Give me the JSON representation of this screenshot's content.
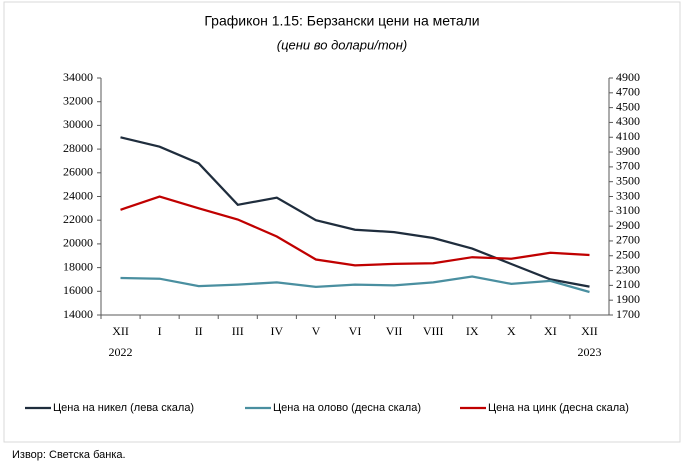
{
  "chart_data": {
    "type": "line",
    "title": "Графикон 1.15: Берзански цени на метали",
    "subtitle": "(цени во долари/тон)",
    "categories": [
      "XII",
      "I",
      "II",
      "III",
      "IV",
      "V",
      "VI",
      "VII",
      "VIII",
      "IX",
      "X",
      "XI",
      "XII"
    ],
    "year_labels": [
      "2022",
      null,
      null,
      null,
      null,
      null,
      null,
      null,
      null,
      null,
      null,
      null,
      "2023"
    ],
    "series": [
      {
        "name": "Цена на никел (лева скала)",
        "color": "#1f2d3d",
        "axis": "y",
        "values": [
          29000,
          28200,
          26800,
          23300,
          23900,
          22000,
          21200,
          21000,
          20500,
          19600,
          18300,
          17000,
          16400
        ]
      },
      {
        "name": "Цена на олово (десна скала)",
        "color": "#4a8fa0",
        "axis": "y2",
        "values": [
          2200,
          2190,
          2090,
          2110,
          2140,
          2080,
          2110,
          2100,
          2140,
          2220,
          2120,
          2160,
          2010
        ]
      },
      {
        "name": "Цена на цинк (десна скала)",
        "color": "#c00000",
        "axis": "y2",
        "values": [
          3120,
          3300,
          3140,
          2990,
          2760,
          2450,
          2370,
          2390,
          2400,
          2480,
          2460,
          2540,
          2510
        ]
      }
    ],
    "ylim": [
      14000,
      34000
    ],
    "yticks": [
      14000,
      16000,
      18000,
      20000,
      22000,
      24000,
      26000,
      28000,
      30000,
      32000,
      34000
    ],
    "y2lim": [
      1700,
      4900
    ],
    "y2ticks": [
      1700,
      1900,
      2100,
      2300,
      2500,
      2700,
      2900,
      3100,
      3300,
      3500,
      3700,
      3900,
      4100,
      4300,
      4500,
      4700,
      4900
    ],
    "source": "Извор: Светска банка."
  }
}
